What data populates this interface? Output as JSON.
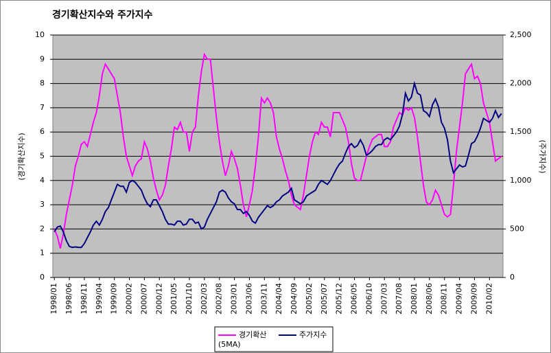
{
  "chart_data": {
    "type": "line",
    "title": "경기확산지수와 주가지수",
    "y_label": "(경기확산지수)",
    "y2_label": "(주가지수)",
    "background": "#c0c0c0",
    "grid": true,
    "legend": "bottom",
    "ylim": [
      0,
      10
    ],
    "yticks": [
      0,
      1,
      2,
      3,
      4,
      5,
      6,
      7,
      8,
      9,
      10
    ],
    "y2lim": [
      0,
      2500
    ],
    "y2ticks": [
      0,
      500,
      {
        "value": 1000,
        "label": "1,000"
      },
      {
        "value": 1500,
        "label": "1,500"
      },
      {
        "value": 2000,
        "label": "2,000"
      },
      {
        "value": 2500,
        "label": "2,500"
      }
    ],
    "categories": [
      "1998/01",
      null,
      null,
      null,
      null,
      "1998/06",
      null,
      null,
      null,
      null,
      "1998/11",
      null,
      null,
      null,
      null,
      "1999/04",
      null,
      null,
      null,
      null,
      "1999/09",
      null,
      null,
      null,
      null,
      "2000/02",
      null,
      null,
      null,
      null,
      "2000/07",
      null,
      null,
      null,
      null,
      "2000/12",
      null,
      null,
      null,
      null,
      "2001/05",
      null,
      null,
      null,
      null,
      "2001/10",
      null,
      null,
      null,
      null,
      "2002/03",
      null,
      null,
      null,
      null,
      "2002/08",
      null,
      null,
      null,
      null,
      "2003/01",
      null,
      null,
      null,
      null,
      "2003/06",
      null,
      null,
      null,
      null,
      "2003/11",
      null,
      null,
      null,
      null,
      "2004/04",
      null,
      null,
      null,
      null,
      "2004/09",
      null,
      null,
      null,
      null,
      "2005/02",
      null,
      null,
      null,
      null,
      "2005/07",
      null,
      null,
      null,
      null,
      "2005/12",
      null,
      null,
      null,
      null,
      "2006/05",
      null,
      null,
      null,
      null,
      "2006/10",
      null,
      null,
      null,
      null,
      "2007/03",
      null,
      null,
      null,
      null,
      "2007/08",
      null,
      null,
      null,
      null,
      "2008/01",
      null,
      null,
      null,
      null,
      "2008/06",
      null,
      null,
      null,
      null,
      "2008/11",
      null,
      null,
      null,
      null,
      "2009/04",
      null,
      null,
      null,
      null,
      "2009/09",
      null,
      null,
      null,
      null,
      "2010/02",
      null,
      null,
      null,
      null
    ],
    "series": [
      {
        "name": "경기확산 (5MA)",
        "color": "#ff00ff",
        "axis": "y",
        "values": [
          2.0,
          1.7,
          1.2,
          1.8,
          2.6,
          3.2,
          3.8,
          4.6,
          5.0,
          5.5,
          5.6,
          5.4,
          5.9,
          6.4,
          6.8,
          7.5,
          8.4,
          8.8,
          8.6,
          8.4,
          8.2,
          7.5,
          6.8,
          5.8,
          5.0,
          4.6,
          4.2,
          4.6,
          4.8,
          4.9,
          5.6,
          5.3,
          4.8,
          4.1,
          3.6,
          3.2,
          3.4,
          3.8,
          4.6,
          5.3,
          6.2,
          6.1,
          6.4,
          6.0,
          6.0,
          5.2,
          6.0,
          6.2,
          7.5,
          8.5,
          9.2,
          9.0,
          9.0,
          7.8,
          6.6,
          5.6,
          4.8,
          4.2,
          4.6,
          5.2,
          4.9,
          4.5,
          3.8,
          3.0,
          2.5,
          3.0,
          3.6,
          4.6,
          5.8,
          7.4,
          7.2,
          7.4,
          7.2,
          6.8,
          5.8,
          5.3,
          4.9,
          4.4,
          4.0,
          3.4,
          3.0,
          2.9,
          2.8,
          3.4,
          4.2,
          5.0,
          5.6,
          6.0,
          5.9,
          6.4,
          6.2,
          6.2,
          5.8,
          6.8,
          6.8,
          6.8,
          6.5,
          6.2,
          5.6,
          4.7,
          4.1,
          4.0,
          4.0,
          4.5,
          5.0,
          5.4,
          5.7,
          5.8,
          5.9,
          5.9,
          5.4,
          5.4,
          5.6,
          6.2,
          6.5,
          6.8,
          6.7,
          7.0,
          6.9,
          7.0,
          6.6,
          5.8,
          4.8,
          3.8,
          3.1,
          3.0,
          3.2,
          3.6,
          3.4,
          3.0,
          2.6,
          2.5,
          2.6,
          3.8,
          5.2,
          6.2,
          7.2,
          8.4,
          8.6,
          8.8,
          8.2,
          8.3,
          8.0,
          7.2,
          6.8,
          6.4,
          5.6,
          4.8,
          4.9,
          5.0
        ]
      },
      {
        "name": "주가지수",
        "color": "#000080",
        "axis": "y2",
        "values": [
          470,
          520,
          530,
          470,
          380,
          320,
          310,
          315,
          310,
          310,
          350,
          410,
          470,
          540,
          580,
          540,
          600,
          680,
          720,
          800,
          880,
          960,
          940,
          940,
          880,
          980,
          1000,
          980,
          940,
          900,
          820,
          760,
          730,
          800,
          800,
          740,
          680,
          600,
          550,
          550,
          540,
          580,
          580,
          540,
          550,
          600,
          600,
          560,
          570,
          500,
          520,
          600,
          660,
          720,
          780,
          880,
          900,
          880,
          820,
          780,
          760,
          700,
          700,
          660,
          680,
          640,
          580,
          560,
          620,
          660,
          700,
          740,
          720,
          740,
          780,
          800,
          840,
          860,
          880,
          920,
          800,
          780,
          760,
          780,
          840,
          860,
          880,
          900,
          960,
          1000,
          980,
          960,
          1000,
          1060,
          1120,
          1170,
          1200,
          1280,
          1350,
          1380,
          1340,
          1360,
          1420,
          1360,
          1260,
          1280,
          1310,
          1350,
          1370,
          1370,
          1420,
          1440,
          1420,
          1460,
          1500,
          1560,
          1680,
          1900,
          1820,
          1860,
          2000,
          1900,
          1880,
          1720,
          1700,
          1660,
          1780,
          1840,
          1760,
          1600,
          1540,
          1420,
          1200,
          1080,
          1120,
          1160,
          1140,
          1150,
          1260,
          1380,
          1400,
          1460,
          1540,
          1640,
          1620,
          1600,
          1640,
          1720,
          1650,
          1690
        ]
      }
    ]
  }
}
